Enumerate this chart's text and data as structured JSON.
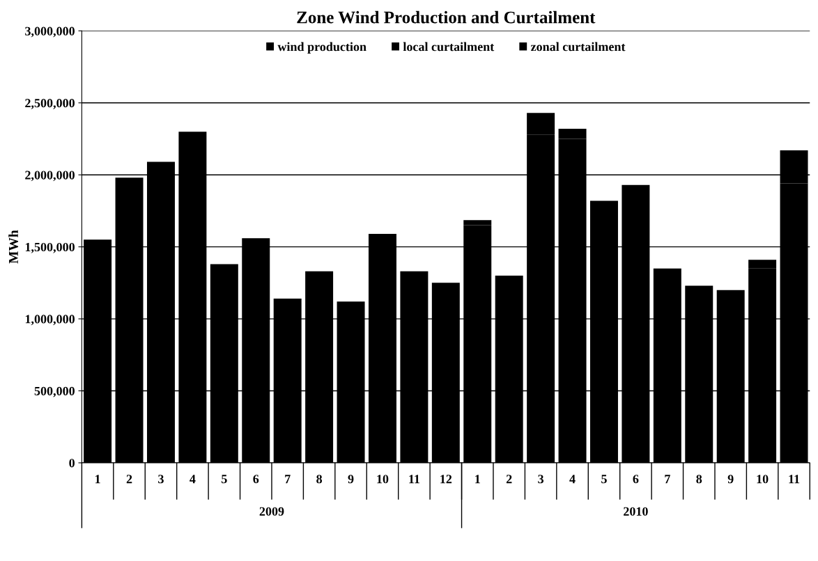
{
  "chart_data": {
    "type": "bar",
    "title": "Zone Wind Production and Curtailment",
    "ylabel": "MWh",
    "stacked": true,
    "categories": [
      "1",
      "2",
      "3",
      "4",
      "5",
      "6",
      "7",
      "8",
      "9",
      "10",
      "11",
      "12",
      "1",
      "2",
      "3",
      "4",
      "5",
      "6",
      "7",
      "8",
      "9",
      "10",
      "11"
    ],
    "series": [
      {
        "name": "wind production",
        "color": "#000000",
        "values": [
          1550000,
          1980000,
          2090000,
          2300000,
          1380000,
          1560000,
          1140000,
          1330000,
          1120000,
          1590000,
          1330000,
          1250000,
          1650000,
          1300000,
          2280000,
          2250000,
          1750000,
          1890000,
          1350000,
          1230000,
          1200000,
          1350000,
          1940000
        ]
      },
      {
        "name": "local curtailment",
        "color": "#000000",
        "values": [
          null,
          null,
          null,
          null,
          null,
          null,
          null,
          null,
          null,
          null,
          null,
          null,
          35000,
          null,
          150000,
          70000,
          70000,
          40000,
          null,
          null,
          null,
          60000,
          230000
        ]
      },
      {
        "name": "zonal curtailment",
        "color": "#000000",
        "values": [
          null,
          null,
          null,
          null,
          null,
          null,
          null,
          null,
          null,
          null,
          null,
          null,
          null,
          null,
          null,
          null,
          null,
          null,
          null,
          null,
          null,
          null,
          null
        ]
      }
    ],
    "annotations": [
      "2009",
      "2010"
    ],
    "ylim": [
      0,
      3000000
    ],
    "yticks": [
      {
        "value": 0,
        "label": "0"
      },
      {
        "value": 500000,
        "label": "500,000"
      },
      {
        "value": 1000000,
        "label": "1,000,000"
      },
      {
        "value": 1500000,
        "label": "1,500,000"
      },
      {
        "value": 2000000,
        "label": "2,000,000"
      },
      {
        "value": 2500000,
        "label": "2,500,000"
      },
      {
        "value": 3000000,
        "label": "3,000,000"
      }
    ],
    "grid": "y",
    "legend": "top"
  }
}
